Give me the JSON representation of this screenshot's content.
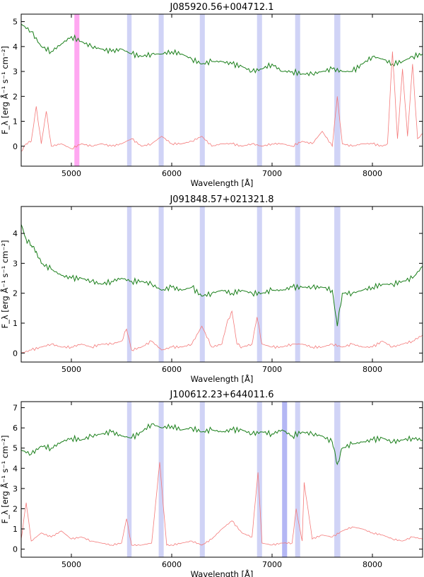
{
  "chart_data": [
    {
      "type": "line",
      "title": "J085920.56+004712.1",
      "xlabel": "Wavelength [Å]",
      "ylabel": "F_λ [erg Å⁻¹ s⁻¹ cm⁻²]",
      "xlim": [
        4500,
        8500
      ],
      "ylim": [
        -0.8,
        5.3
      ],
      "x_ticks": [
        5000,
        6000,
        7000,
        8000
      ],
      "y_ticks": [
        0,
        1,
        2,
        3,
        4,
        5
      ],
      "shaded_bands": [
        {
          "x0": 5030,
          "x1": 5080,
          "color": "#ff99ee"
        },
        {
          "x0": 5555,
          "x1": 5600,
          "color": "#c8cbf4"
        },
        {
          "x0": 5870,
          "x1": 5920,
          "color": "#c8cbf4"
        },
        {
          "x0": 6280,
          "x1": 6330,
          "color": "#c8cbf4"
        },
        {
          "x0": 6850,
          "x1": 6900,
          "color": "#c8cbf4"
        },
        {
          "x0": 7230,
          "x1": 7280,
          "color": "#c8cbf4"
        },
        {
          "x0": 7620,
          "x1": 7680,
          "color": "#c8cbf4"
        }
      ],
      "series": [
        {
          "role": "spectrum",
          "color": "#1a7f1a",
          "x": [
            4500,
            4600,
            4700,
            4800,
            4900,
            5000,
            5100,
            5200,
            5300,
            5400,
            5500,
            5600,
            5700,
            5800,
            5900,
            6000,
            6100,
            6200,
            6300,
            6400,
            6500,
            6600,
            6700,
            6800,
            6900,
            7000,
            7100,
            7200,
            7300,
            7400,
            7500,
            7600,
            7700,
            7800,
            7900,
            8000,
            8100,
            8200,
            8300,
            8400,
            8500
          ],
          "y": [
            4.9,
            4.6,
            4.0,
            3.8,
            4.1,
            4.4,
            4.2,
            4.0,
            3.9,
            3.8,
            3.9,
            3.7,
            3.6,
            3.7,
            3.7,
            3.8,
            3.7,
            3.5,
            3.3,
            3.4,
            3.4,
            3.3,
            3.2,
            3.0,
            3.1,
            3.3,
            3.0,
            3.0,
            2.9,
            2.9,
            3.0,
            3.1,
            3.0,
            3.0,
            3.3,
            3.6,
            3.5,
            3.3,
            3.4,
            3.6,
            3.7
          ]
        },
        {
          "role": "sky",
          "color": "#f47a7a",
          "x": [
            4500,
            4550,
            4600,
            4650,
            4700,
            4750,
            4800,
            4900,
            5000,
            5100,
            5200,
            5300,
            5400,
            5500,
            5600,
            5700,
            5800,
            5900,
            6000,
            6100,
            6200,
            6300,
            6400,
            6500,
            6600,
            6700,
            6800,
            6900,
            7000,
            7100,
            7200,
            7300,
            7400,
            7500,
            7600,
            7650,
            7700,
            7800,
            7900,
            8000,
            8100,
            8150,
            8200,
            8250,
            8300,
            8350,
            8400,
            8450,
            8500
          ],
          "y": [
            -0.2,
            0.1,
            0.2,
            1.6,
            0.1,
            1.4,
            0.0,
            0.1,
            -0.1,
            0.1,
            0.0,
            0.1,
            0.0,
            0.1,
            0.3,
            0.0,
            0.1,
            0.4,
            0.1,
            0.1,
            0.2,
            0.4,
            0.0,
            0.1,
            0.1,
            0.0,
            0.1,
            0.0,
            0.1,
            0.1,
            0.0,
            0.2,
            0.1,
            0.6,
            0.0,
            2.0,
            0.1,
            0.0,
            0.1,
            0.1,
            0.0,
            0.1,
            3.8,
            0.3,
            3.1,
            0.4,
            3.3,
            0.3,
            0.5
          ]
        }
      ]
    },
    {
      "type": "line",
      "title": "J091848.57+021321.8",
      "xlabel": "Wavelength [Å]",
      "ylabel": "F_λ [erg Å⁻¹ s⁻¹ cm⁻²]",
      "xlim": [
        4500,
        8500
      ],
      "ylim": [
        -0.3,
        4.9
      ],
      "x_ticks": [
        5000,
        6000,
        7000,
        8000
      ],
      "y_ticks": [
        0,
        1,
        2,
        3,
        4
      ],
      "shaded_bands": [
        {
          "x0": 5555,
          "x1": 5600,
          "color": "#c8cbf4"
        },
        {
          "x0": 5870,
          "x1": 5920,
          "color": "#c8cbf4"
        },
        {
          "x0": 6280,
          "x1": 6330,
          "color": "#c8cbf4"
        },
        {
          "x0": 6850,
          "x1": 6900,
          "color": "#c8cbf4"
        },
        {
          "x0": 7230,
          "x1": 7280,
          "color": "#c8cbf4"
        },
        {
          "x0": 7620,
          "x1": 7680,
          "color": "#c8cbf4"
        }
      ],
      "series": [
        {
          "role": "spectrum",
          "color": "#1a7f1a",
          "x": [
            4500,
            4550,
            4600,
            4650,
            4700,
            4800,
            4900,
            5000,
            5100,
            5200,
            5300,
            5400,
            5500,
            5600,
            5700,
            5800,
            5900,
            6000,
            6100,
            6200,
            6300,
            6400,
            6500,
            6600,
            6700,
            6800,
            6900,
            7000,
            7100,
            7200,
            7300,
            7400,
            7500,
            7600,
            7650,
            7700,
            7800,
            7900,
            8000,
            8100,
            8200,
            8300,
            8400,
            8500
          ],
          "y": [
            4.3,
            3.8,
            3.6,
            3.4,
            3.0,
            2.8,
            2.6,
            2.5,
            2.5,
            2.4,
            2.3,
            2.4,
            2.5,
            2.4,
            2.4,
            2.3,
            2.1,
            2.2,
            2.1,
            2.2,
            1.9,
            2.0,
            2.1,
            2.0,
            2.1,
            2.0,
            2.0,
            2.1,
            2.1,
            2.2,
            2.2,
            2.2,
            2.2,
            2.1,
            0.9,
            2.0,
            2.0,
            2.1,
            2.2,
            2.3,
            2.3,
            2.4,
            2.5,
            2.9
          ]
        },
        {
          "role": "sky",
          "color": "#f47a7a",
          "x": [
            4500,
            4600,
            4700,
            4800,
            4900,
            5000,
            5100,
            5200,
            5300,
            5400,
            5500,
            5550,
            5600,
            5700,
            5800,
            5900,
            6000,
            6100,
            6200,
            6300,
            6400,
            6500,
            6550,
            6600,
            6650,
            6700,
            6800,
            6850,
            6900,
            7000,
            7100,
            7200,
            7300,
            7400,
            7500,
            7600,
            7700,
            7800,
            7900,
            8000,
            8100,
            8200,
            8300,
            8400,
            8500
          ],
          "y": [
            0.0,
            0.1,
            0.2,
            0.3,
            0.2,
            0.2,
            0.3,
            0.2,
            0.3,
            0.3,
            0.4,
            0.8,
            0.1,
            0.2,
            0.4,
            0.1,
            0.2,
            0.2,
            0.3,
            0.9,
            0.2,
            0.3,
            1.0,
            1.4,
            0.3,
            0.2,
            0.3,
            1.2,
            0.3,
            0.2,
            0.2,
            0.3,
            0.3,
            0.2,
            0.2,
            0.3,
            0.2,
            0.3,
            0.2,
            0.2,
            0.4,
            0.2,
            0.3,
            0.4,
            0.6
          ]
        }
      ]
    },
    {
      "type": "line",
      "title": "J100612.23+644011.6",
      "xlabel": "Wavelength [Å]",
      "ylabel": "F_λ [erg Å⁻¹ s⁻¹ cm⁻²]",
      "xlim": [
        4500,
        8500
      ],
      "ylim": [
        -0.4,
        7.3
      ],
      "x_ticks": [
        5000,
        6000,
        7000,
        8000
      ],
      "y_ticks": [
        0,
        1,
        2,
        3,
        4,
        5,
        6,
        7
      ],
      "shaded_bands": [
        {
          "x0": 5555,
          "x1": 5600,
          "color": "#c8cbf4"
        },
        {
          "x0": 5870,
          "x1": 5920,
          "color": "#c8cbf4"
        },
        {
          "x0": 6280,
          "x1": 6330,
          "color": "#c8cbf4"
        },
        {
          "x0": 6850,
          "x1": 6900,
          "color": "#c8cbf4"
        },
        {
          "x0": 7100,
          "x1": 7150,
          "color": "#a7aaf2"
        },
        {
          "x0": 7230,
          "x1": 7280,
          "color": "#c8cbf4"
        },
        {
          "x0": 7620,
          "x1": 7680,
          "color": "#c8cbf4"
        }
      ],
      "series": [
        {
          "role": "spectrum",
          "color": "#1a7f1a",
          "x": [
            4500,
            4600,
            4700,
            4800,
            4900,
            5000,
            5100,
            5200,
            5300,
            5400,
            5500,
            5600,
            5700,
            5800,
            5900,
            6000,
            6100,
            6200,
            6300,
            6400,
            6500,
            6600,
            6700,
            6800,
            6900,
            7000,
            7100,
            7200,
            7300,
            7400,
            7500,
            7600,
            7650,
            7700,
            7800,
            7900,
            8000,
            8100,
            8200,
            8300,
            8400,
            8500
          ],
          "y": [
            4.9,
            4.7,
            5.1,
            5.0,
            5.3,
            5.5,
            5.4,
            5.6,
            5.7,
            5.8,
            5.6,
            5.5,
            5.8,
            6.2,
            6.0,
            6.1,
            5.9,
            6.0,
            5.8,
            5.9,
            5.8,
            5.9,
            5.9,
            5.7,
            5.8,
            5.7,
            5.9,
            5.6,
            5.8,
            5.7,
            5.6,
            5.3,
            4.2,
            5.0,
            5.2,
            5.3,
            5.4,
            5.5,
            5.3,
            5.4,
            5.5,
            5.4
          ]
        },
        {
          "role": "sky",
          "color": "#f47a7a",
          "x": [
            4500,
            4550,
            4600,
            4700,
            4800,
            4900,
            5000,
            5100,
            5200,
            5300,
            5400,
            5500,
            5550,
            5600,
            5700,
            5800,
            5880,
            5950,
            6000,
            6100,
            6200,
            6300,
            6400,
            6500,
            6600,
            6700,
            6800,
            6860,
            6900,
            7000,
            7100,
            7200,
            7240,
            7300,
            7320,
            7400,
            7500,
            7600,
            7700,
            7800,
            7900,
            8000,
            8100,
            8200,
            8300,
            8400,
            8500
          ],
          "y": [
            0.5,
            2.3,
            0.4,
            0.8,
            0.6,
            0.9,
            0.5,
            0.6,
            0.4,
            0.3,
            0.2,
            0.3,
            1.5,
            0.2,
            0.2,
            0.3,
            4.3,
            0.2,
            0.2,
            0.3,
            0.4,
            0.2,
            0.5,
            1.0,
            1.4,
            0.8,
            0.6,
            3.8,
            0.3,
            0.2,
            0.3,
            0.3,
            2.0,
            0.4,
            3.3,
            0.5,
            0.7,
            0.6,
            0.9,
            1.1,
            1.0,
            0.8,
            0.7,
            0.5,
            0.4,
            0.6,
            0.5
          ]
        }
      ]
    }
  ]
}
